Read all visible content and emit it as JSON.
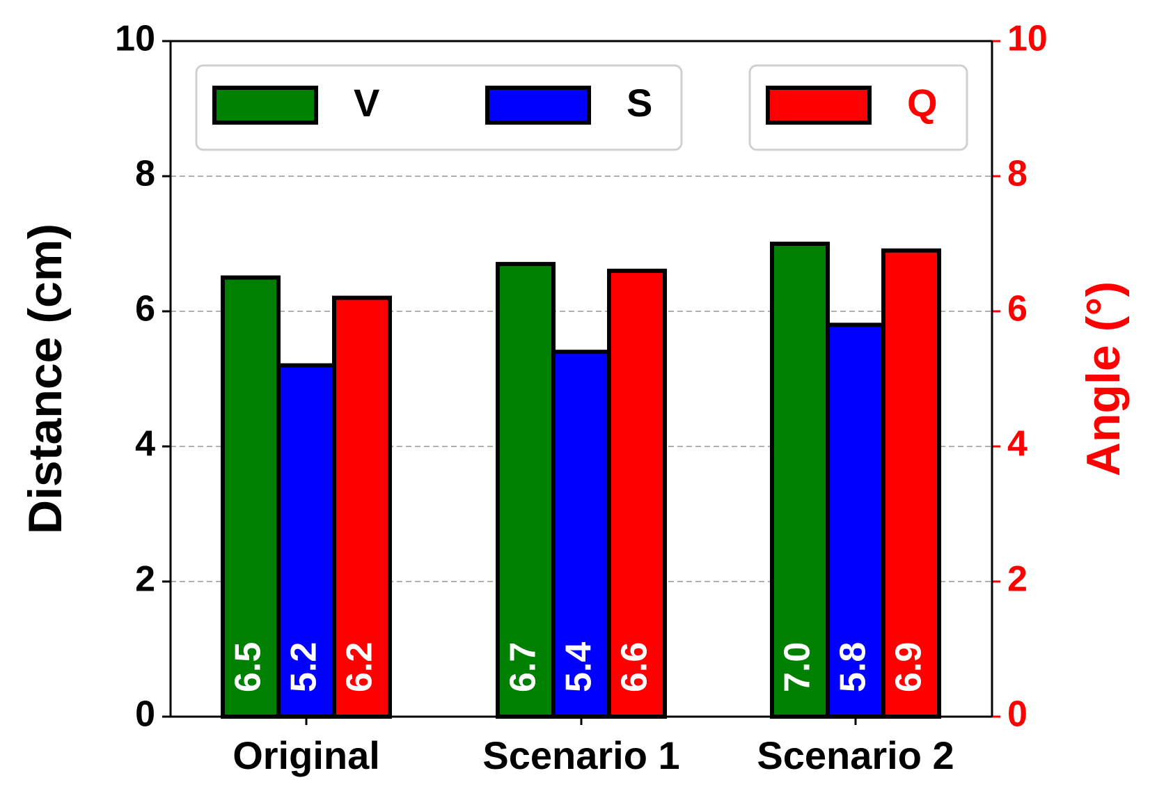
{
  "chart_data": {
    "type": "bar",
    "y_label": "Distance (cm)",
    "y2_label": "Angle (°)",
    "categories": [
      "Original",
      "Scenario 1",
      "Scenario 2"
    ],
    "series": [
      {
        "name": "V",
        "color": "#008000",
        "values": [
          6.5,
          6.7,
          7.0
        ],
        "value_labels": [
          "6.5",
          "6.7",
          "7.0"
        ]
      },
      {
        "name": "S",
        "color": "#0000ff",
        "values": [
          5.2,
          5.4,
          5.8
        ],
        "value_labels": [
          "5.2",
          "5.4",
          "5.8"
        ]
      },
      {
        "name": "Q",
        "color": "#ff0000",
        "values": [
          6.2,
          6.6,
          6.9
        ],
        "value_labels": [
          "6.2",
          "6.6",
          "6.9"
        ],
        "axis": "y2"
      }
    ],
    "ylim": [
      0,
      10
    ],
    "yticks": [
      0,
      2,
      4,
      6,
      8,
      10
    ],
    "y2lim": [
      0,
      10
    ],
    "y2ticks": [
      0,
      2,
      4,
      6,
      8,
      10
    ],
    "y2_color": "#ff0000",
    "grid": true
  }
}
